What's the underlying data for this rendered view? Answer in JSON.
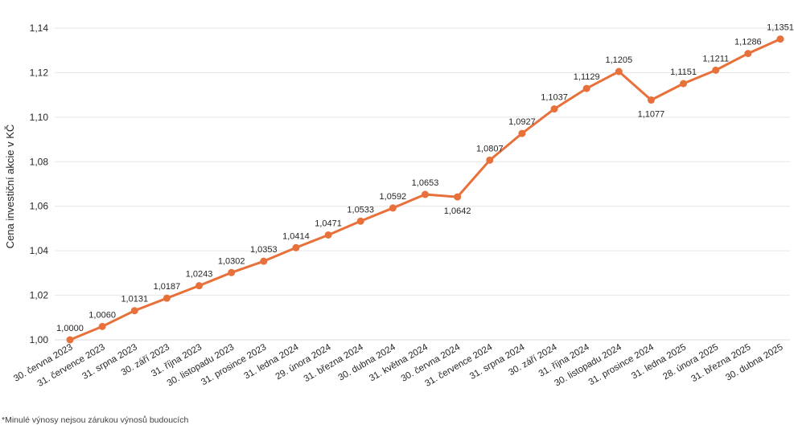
{
  "chart_data": {
    "type": "line",
    "title": "",
    "xlabel": "",
    "ylabel": "Cena investiční akcie v KČ",
    "ylim": [
      1.0,
      1.14
    ],
    "yticks": [
      "1,00",
      "1,02",
      "1,04",
      "1,06",
      "1,08",
      "1,10",
      "1,12",
      "1,14"
    ],
    "grid": true,
    "legend": "none",
    "line_color": "#E8703A",
    "categories": [
      "30. června 2023",
      "31. července 2023",
      "31. srpna 2023",
      "30. září 2023",
      "31. října 2023",
      "30. listopadu 2023",
      "31. prosince 2023",
      "31. ledna 2024",
      "29. února 2024",
      "31. března 2024",
      "30. dubna 2024",
      "31. května 2024",
      "30. června 2024",
      "31. července 2024",
      "31. srpna 2024",
      "30. září 2024",
      "31. října 2024",
      "30. listopadu 2024",
      "31. prosince 2024",
      "31. ledna 2025",
      "28. února 2025",
      "31. března 2025",
      "30. dubna 2025"
    ],
    "values": [
      1.0,
      1.006,
      1.0131,
      1.0187,
      1.0243,
      1.0302,
      1.0353,
      1.0414,
      1.0471,
      1.0533,
      1.0592,
      1.0653,
      1.0642,
      1.0807,
      1.0927,
      1.1037,
      1.1129,
      1.1205,
      1.1077,
      1.1151,
      1.1211,
      1.1286,
      1.1351
    ],
    "data_labels": [
      "1,0000",
      "1,0060",
      "1,0131",
      "1,0187",
      "1,0243",
      "1,0302",
      "1,0353",
      "1,0414",
      "1,0471",
      "1,0533",
      "1,0592",
      "1,0653",
      "1,0642",
      "1,0807",
      "1,0927",
      "1,1037",
      "1,1129",
      "1,1205",
      "1,1077",
      "1,1151",
      "1,1211",
      "1,1286",
      "1,1351"
    ]
  },
  "footnote": "*Minulé výnosy nejsou zárukou výnosů budoucích"
}
